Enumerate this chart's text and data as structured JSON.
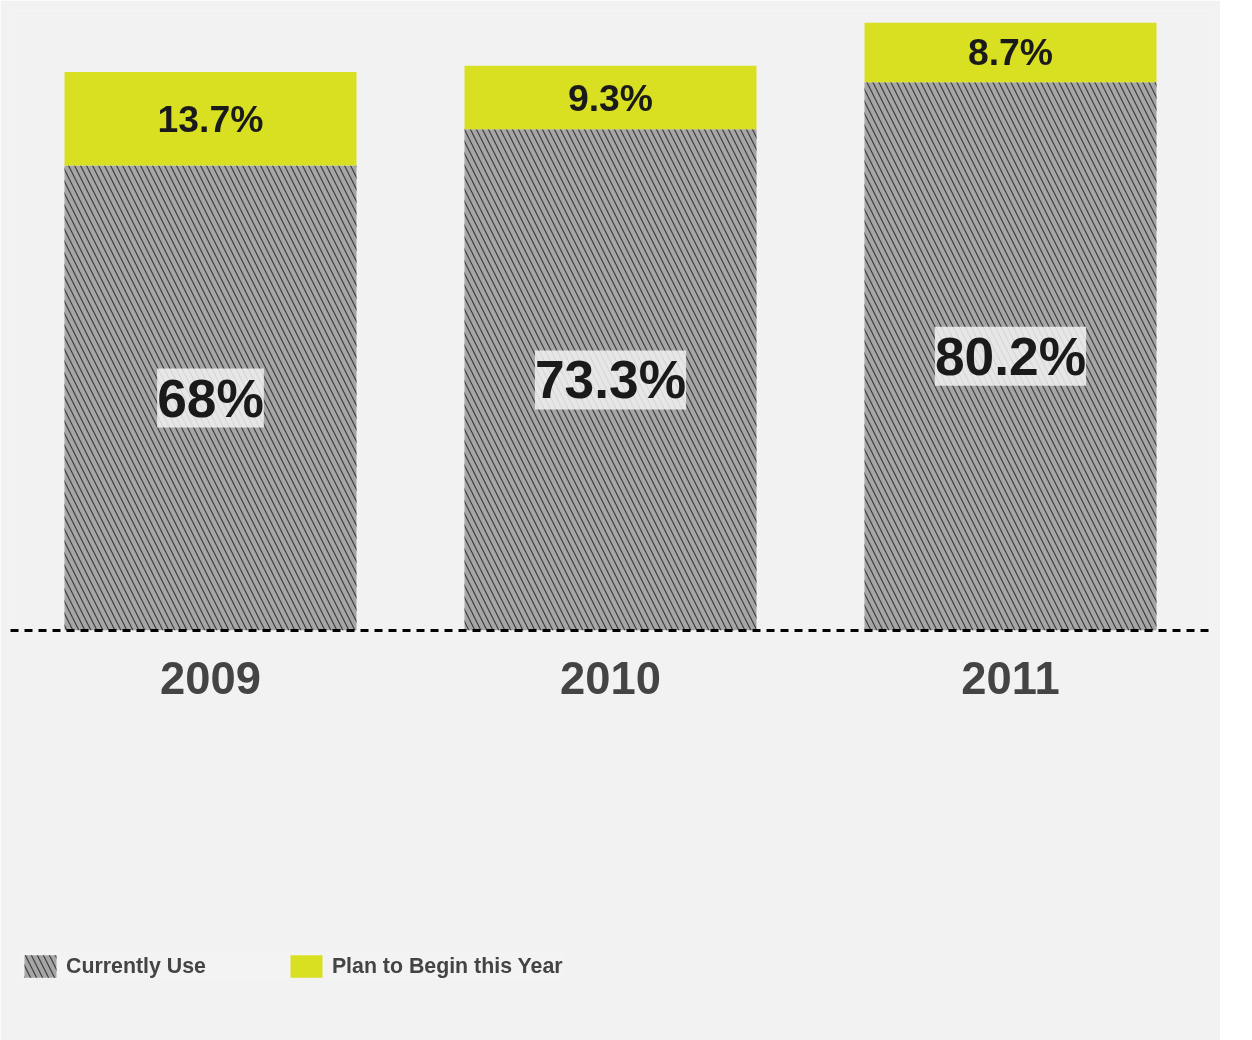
{
  "chart_data": {
    "type": "bar",
    "stacked": true,
    "categories": [
      "2009",
      "2010",
      "2011"
    ],
    "series": [
      {
        "name": "Currently Use",
        "color": "#a6a6a6",
        "values": [
          68,
          73.3,
          80.2
        ],
        "value_labels": [
          "68%",
          "73.3%",
          "80.2%"
        ]
      },
      {
        "name": "Plan to Begin this Year",
        "color": "#d9e021",
        "values": [
          13.7,
          9.3,
          8.7
        ],
        "value_labels": [
          "13.7%",
          "9.3%",
          "8.7%"
        ]
      }
    ],
    "legend": "bottom",
    "grid": false
  }
}
